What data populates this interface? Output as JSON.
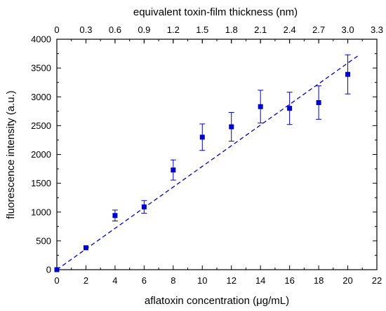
{
  "chart_data": {
    "type": "scatter",
    "xlabel": "aflatoxin concentration (μg/mL)",
    "ylabel": "fluorescence intensity (a.u.)",
    "x2label": "equivalent toxin-film thickness (nm)",
    "xlim": [
      0,
      22
    ],
    "ylim": [
      0,
      4000
    ],
    "x2lim": [
      0,
      3.3
    ],
    "xticks": [
      "0",
      "2",
      "4",
      "6",
      "8",
      "10",
      "12",
      "14",
      "16",
      "18",
      "20",
      "22"
    ],
    "yticks": [
      "0",
      "500",
      "1000",
      "1500",
      "2000",
      "2500",
      "3000",
      "3500",
      "4000"
    ],
    "x2ticks": [
      "0",
      "0.3",
      "0.6",
      "0.9",
      "1.2",
      "1.5",
      "1.8",
      "2.1",
      "2.4",
      "2.7",
      "3.0",
      "3.3"
    ],
    "grid": false,
    "colors": {
      "points": "#0000cc",
      "fit": "#0000cc"
    },
    "series": [
      {
        "marker": "square",
        "points": [
          {
            "x": 0,
            "y": 0,
            "err": 0
          },
          {
            "x": 2,
            "y": 380,
            "err": 0
          },
          {
            "x": 4,
            "y": 940,
            "err": 95
          },
          {
            "x": 6,
            "y": 1090,
            "err": 110
          },
          {
            "x": 8,
            "y": 1730,
            "err": 175
          },
          {
            "x": 10,
            "y": 2300,
            "err": 230
          },
          {
            "x": 12,
            "y": 2480,
            "err": 250
          },
          {
            "x": 14,
            "y": 2830,
            "err": 285
          },
          {
            "x": 16,
            "y": 2800,
            "err": 280
          },
          {
            "x": 18,
            "y": 2900,
            "err": 290
          },
          {
            "x": 20,
            "y": 3390,
            "err": 340
          }
        ]
      }
    ],
    "fit_line": {
      "style": "dashed",
      "from": [
        0,
        0
      ],
      "to": [
        20.8,
        3730
      ]
    }
  }
}
